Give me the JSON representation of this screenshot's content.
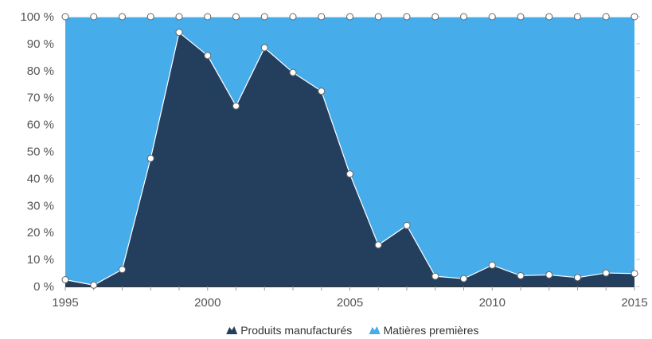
{
  "chart_data": {
    "type": "area",
    "stacking": "percent",
    "title": "",
    "xlabel": "",
    "ylabel": "",
    "x": [
      1995,
      1996,
      1997,
      1998,
      1999,
      2000,
      2001,
      2002,
      2003,
      2004,
      2005,
      2006,
      2007,
      2008,
      2009,
      2010,
      2011,
      2012,
      2013,
      2014,
      2015
    ],
    "xlim": [
      1995,
      2015
    ],
    "x_ticks": [
      1995,
      2000,
      2005,
      2010,
      2015
    ],
    "x_tick_labels": [
      "1995",
      "2000",
      "2005",
      "2010",
      "2015"
    ],
    "ylim": [
      0,
      100
    ],
    "y_ticks": [
      0,
      10,
      20,
      30,
      40,
      50,
      60,
      70,
      80,
      90,
      100
    ],
    "y_tick_labels": [
      "0 %",
      "10 %",
      "20 %",
      "30 %",
      "40 %",
      "50 %",
      "60 %",
      "70 %",
      "80 %",
      "90 %",
      "100 %"
    ],
    "series": [
      {
        "name": "Produits manufacturés",
        "color": "#243f5e",
        "values": [
          2.5,
          0.5,
          6.3,
          47.5,
          94.2,
          85.6,
          66.9,
          88.5,
          79.3,
          72.4,
          41.7,
          15.4,
          22.6,
          3.8,
          2.9,
          7.9,
          4.0,
          4.3,
          3.3,
          5.0,
          4.8
        ]
      },
      {
        "name": "Matières premières",
        "color": "#47acea",
        "values": [
          97.5,
          99.5,
          93.7,
          52.5,
          5.8,
          14.4,
          33.1,
          11.5,
          20.7,
          27.6,
          58.3,
          84.6,
          77.4,
          96.2,
          97.1,
          92.1,
          96.0,
          95.7,
          96.7,
          95.0,
          95.2
        ]
      }
    ],
    "grid": false,
    "legend": {
      "position": "bottom-center",
      "icon": "area-icon"
    }
  }
}
